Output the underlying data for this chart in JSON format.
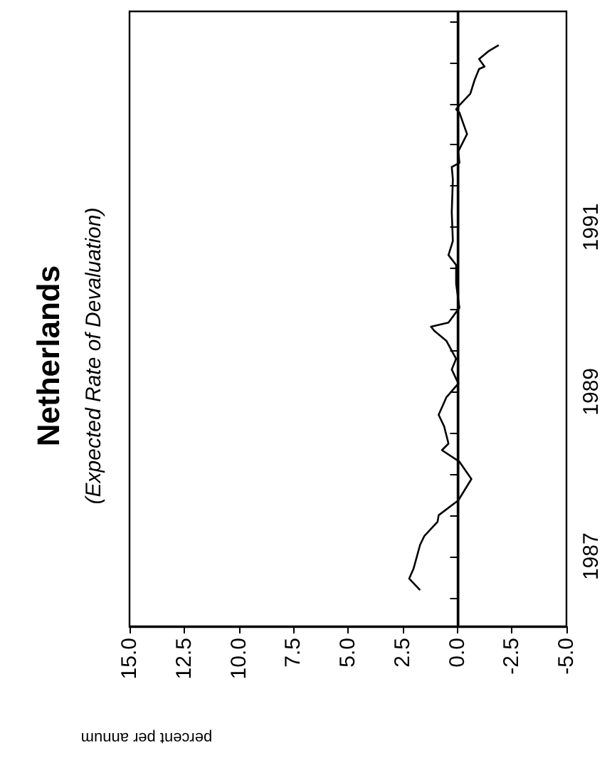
{
  "chart_data": {
    "type": "line",
    "title": "Netherlands",
    "subtitle": "(Expected Rate of Devaluation)",
    "xlabel": "percent per annum",
    "x": [
      1.7,
      2.2,
      2.0,
      1.7,
      1.5,
      0.9,
      0.85,
      -0.05,
      -0.65,
      -0.1,
      0.7,
      0.4,
      0.6,
      0.85,
      0.5,
      -0.05,
      0.25,
      0.05,
      0.5,
      1.05,
      1.2,
      0.4,
      -0.1,
      0.05,
      0.05,
      0.4,
      0.2,
      0.25,
      0.2,
      0.25,
      -0.1,
      -0.05,
      -0.45,
      -0.1,
      0.05,
      -0.1,
      -0.6,
      -0.8,
      -1.0,
      -1.25,
      -1.0,
      -1.45,
      -1.9
    ],
    "series": [
      {
        "color": "#000000",
        "values": [
          1987.09,
          1987.23,
          1987.35,
          1987.64,
          1987.75,
          1987.92,
          1988.0,
          1988.18,
          1988.44,
          1988.65,
          1988.79,
          1988.87,
          1989.08,
          1989.22,
          1989.43,
          1989.6,
          1989.77,
          1989.9,
          1990.12,
          1990.24,
          1990.29,
          1990.34,
          1990.52,
          1990.81,
          1991.04,
          1991.16,
          1991.33,
          1991.68,
          1992.08,
          1992.23,
          1992.28,
          1992.42,
          1992.63,
          1992.89,
          1992.93,
          1992.98,
          1993.12,
          1993.29,
          1993.42,
          1993.45,
          1993.54,
          1993.64,
          1993.71
        ]
      }
    ],
    "xlim": [
      15,
      -5
    ],
    "xticks": [
      {
        "value": 15,
        "label": "15.0"
      },
      {
        "value": 12.5,
        "label": "12.5"
      },
      {
        "value": 10,
        "label": "10.0"
      },
      {
        "value": 7.5,
        "label": "7.5"
      },
      {
        "value": 5,
        "label": "5.0"
      },
      {
        "value": 2.5,
        "label": "2.5"
      },
      {
        "value": 0,
        "label": "0.0"
      },
      {
        "value": -2.5,
        "label": "-2.5"
      },
      {
        "value": -5,
        "label": "-5.0"
      }
    ],
    "ylim": [
      1986.65,
      1994.12
    ],
    "yticks": [
      {
        "value": 1987,
        "label": null
      },
      {
        "value": 1987.5,
        "label": "1987"
      },
      {
        "value": 1988,
        "label": null
      },
      {
        "value": 1988.5,
        "label": null
      },
      {
        "value": 1989,
        "label": null
      },
      {
        "value": 1989.5,
        "label": "1989"
      },
      {
        "value": 1990,
        "label": null
      },
      {
        "value": 1990.5,
        "label": null
      },
      {
        "value": 1991,
        "label": null
      },
      {
        "value": 1991.5,
        "label": "1991"
      },
      {
        "value": 1992,
        "label": null
      },
      {
        "value": 1992.5,
        "label": null
      },
      {
        "value": 1993,
        "label": null
      },
      {
        "value": 1993.5,
        "label": null
      },
      {
        "value": 1994,
        "label": null
      }
    ],
    "ref_lines": [
      {
        "axis": "x",
        "value": 0,
        "color": "#000000"
      }
    ],
    "grid": false,
    "marker": "none",
    "line_style": "solid"
  }
}
